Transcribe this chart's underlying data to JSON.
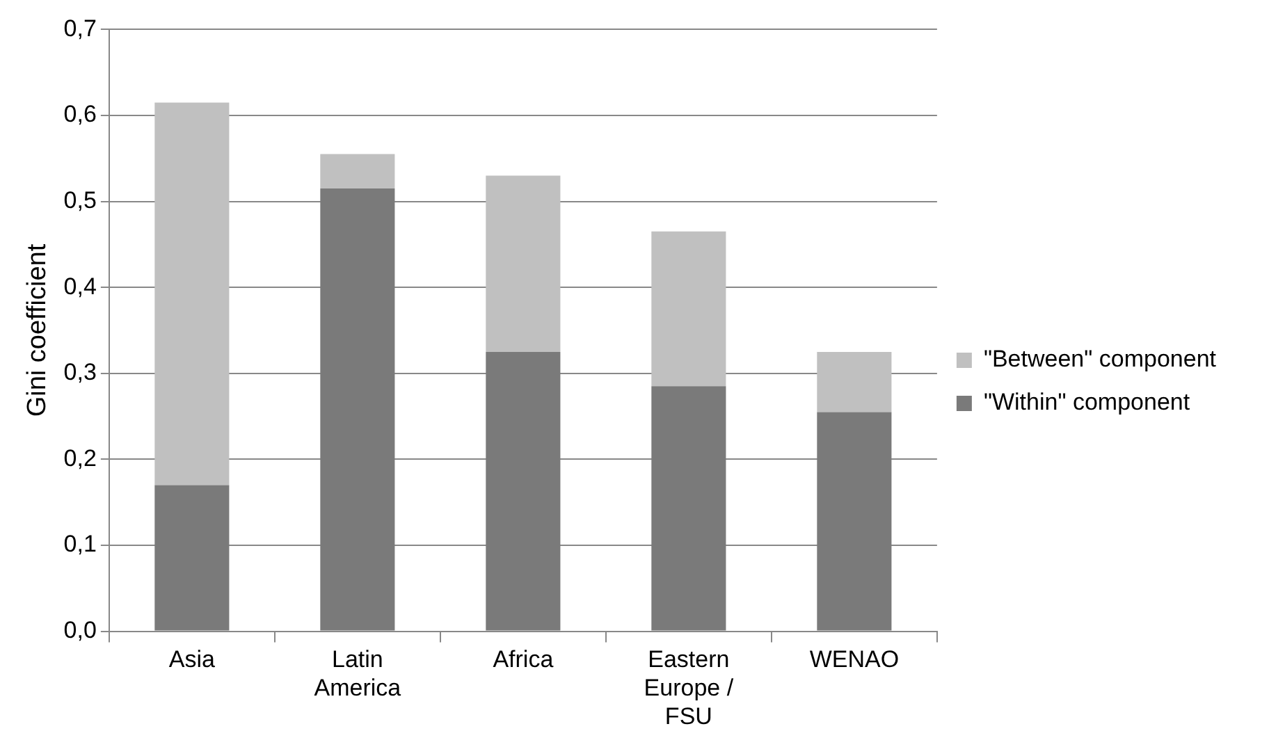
{
  "chart_data": {
    "type": "bar",
    "stacked": true,
    "ylabel": "Gini coefficient",
    "categories": [
      "Asia",
      "Latin America",
      "Africa",
      "Eastern Europe / FSU",
      "WENAO"
    ],
    "series": [
      {
        "name": "\"Within\" component",
        "color": "#7a7a7a",
        "values": [
          0.17,
          0.515,
          0.325,
          0.285,
          0.255
        ]
      },
      {
        "name": "\"Between\" component",
        "color": "#c0c0c0",
        "values": [
          0.445,
          0.04,
          0.205,
          0.18,
          0.07
        ]
      }
    ],
    "ylim": [
      0,
      0.7
    ],
    "yticks": [
      {
        "value": 0,
        "label": "0,0"
      },
      {
        "value": 0.1,
        "label": "0,1"
      },
      {
        "value": 0.2,
        "label": "0,2"
      },
      {
        "value": 0.3,
        "label": "0,3"
      },
      {
        "value": 0.4,
        "label": "0,4"
      },
      {
        "value": 0.5,
        "label": "0,5"
      },
      {
        "value": 0.6,
        "label": "0,6"
      },
      {
        "value": 0.7,
        "label": "0,7"
      }
    ],
    "grid": "y",
    "legend": "right"
  }
}
